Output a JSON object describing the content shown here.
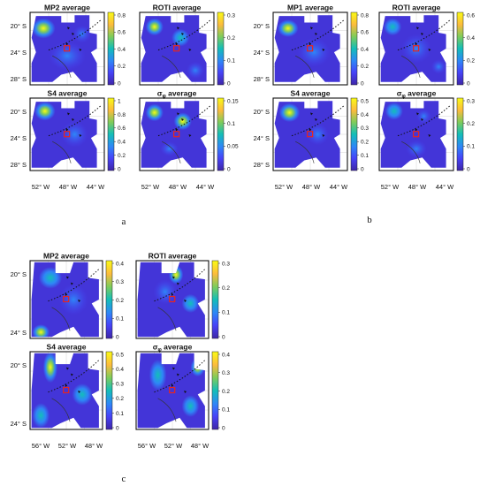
{
  "figure": {
    "subfigures": [
      {
        "label": "a",
        "panels": [
          {
            "title": "MP2 average",
            "colorbar_ticks": [
              "0.8",
              "0.6",
              "0.4",
              "0.2",
              "0"
            ]
          },
          {
            "title": "ROTI average",
            "colorbar_ticks": [
              "0.3",
              "0.2",
              "0.1",
              "0"
            ]
          },
          {
            "title": "S4 average",
            "colorbar_ticks": [
              "1",
              "0.8",
              "0.6",
              "0.4",
              "0.2",
              "0"
            ]
          },
          {
            "title_prefix": "σ",
            "title_sub": "φ",
            "title_suffix": " average",
            "colorbar_ticks": [
              "0.15",
              "0.1",
              "0.05",
              "0"
            ]
          }
        ],
        "y_ticks": [
          "20° S",
          "24° S",
          "28° S"
        ],
        "x_ticks": [
          "52° W",
          "48° W",
          "44° W"
        ]
      },
      {
        "label": "b",
        "panels": [
          {
            "title": "MP1 average",
            "colorbar_ticks": [
              "0.8",
              "0.6",
              "0.4",
              "0.2",
              "0"
            ]
          },
          {
            "title": "ROTI average",
            "colorbar_ticks": [
              "0.6",
              "0.4",
              "0.2",
              "0"
            ]
          },
          {
            "title": "S4 average",
            "colorbar_ticks": [
              "0.5",
              "0.4",
              "0.3",
              "0.2",
              "0.1",
              "0"
            ]
          },
          {
            "title_prefix": "σ",
            "title_sub": "φ",
            "title_suffix": " average",
            "colorbar_ticks": [
              "0.3",
              "0.2",
              "0.1",
              "0"
            ]
          }
        ],
        "y_ticks": [
          "20° S",
          "24° S",
          "28° S"
        ],
        "x_ticks": [
          "52° W",
          "48° W",
          "44° W"
        ]
      },
      {
        "label": "c",
        "panels": [
          {
            "title": "MP2 average",
            "colorbar_ticks": [
              "0.4",
              "0.3",
              "0.2",
              "0.1",
              "0"
            ]
          },
          {
            "title": "ROTI average",
            "colorbar_ticks": [
              "0.3",
              "0.2",
              "0.1",
              "0"
            ]
          },
          {
            "title": "S4 average",
            "colorbar_ticks": [
              "0.5",
              "0.4",
              "0.3",
              "0.2",
              "0.1",
              "0"
            ]
          },
          {
            "title_prefix": "σ",
            "title_sub": "φ",
            "title_suffix": " average",
            "colorbar_ticks": [
              "0.4",
              "0.3",
              "0.2",
              "0.1",
              "0"
            ]
          }
        ],
        "y_ticks": [
          "20° S",
          "24° S"
        ],
        "x_ticks": [
          "56° W",
          "52° W",
          "48° W"
        ]
      }
    ],
    "colormap": [
      "#3e26a8",
      "#4743f8",
      "#2e87f7",
      "#13beb8",
      "#81cc59",
      "#fcbb3d",
      "#f9fb15"
    ],
    "background_color": "#4335d8",
    "station_marker_color": "#e8261e"
  }
}
